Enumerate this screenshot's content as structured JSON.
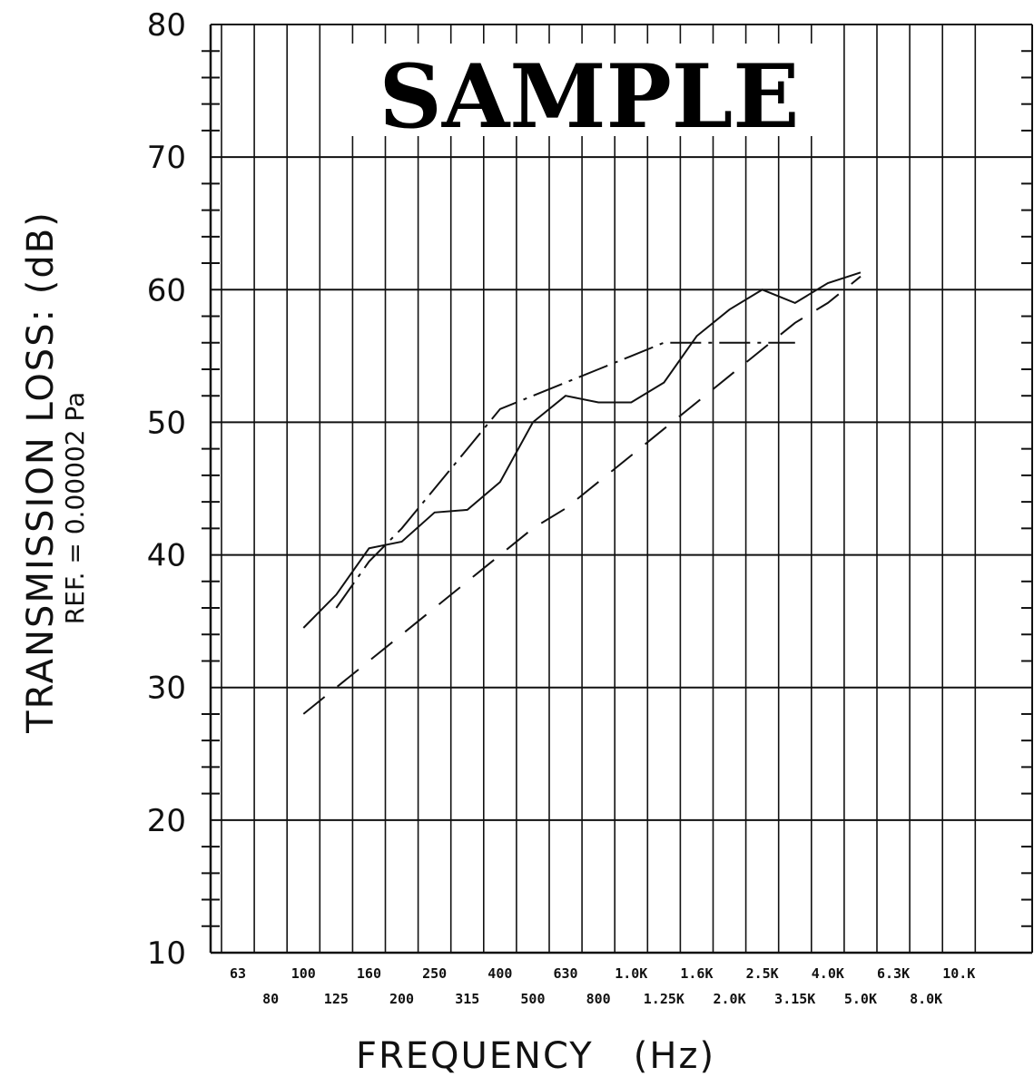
{
  "chart_data": {
    "type": "line",
    "title": "",
    "watermark": "SAMPLE",
    "xlabel": "FREQUENCY   (Hz)",
    "ylabel": "TRANSMISSION LOSS:   (dB)",
    "ylabel_sub": "REF. = 0.00002 Pa",
    "ylim": [
      10,
      80
    ],
    "y_ticks": [
      10,
      20,
      30,
      40,
      50,
      60,
      70,
      80
    ],
    "grid": true,
    "x_tick_labels_upper": [
      "63",
      "100",
      "160",
      "250",
      "400",
      "630",
      "1.0K",
      "1.6K",
      "2.5K",
      "4.0K",
      "6.3K",
      "10.K"
    ],
    "x_tick_labels_lower": [
      "80",
      "125",
      "200",
      "315",
      "500",
      "800",
      "1.25K",
      "2.0K",
      "3.15K",
      "5.0K",
      "8.0K"
    ],
    "categories": [
      "63",
      "80",
      "100",
      "125",
      "160",
      "200",
      "250",
      "315",
      "400",
      "500",
      "630",
      "800",
      "1.0K",
      "1.25K",
      "1.6K",
      "2.0K",
      "2.5K",
      "3.15K",
      "4.0K",
      "5.0K",
      "6.3K",
      "8.0K",
      "10.K"
    ],
    "series": [
      {
        "style": "solid",
        "values": [
          null,
          null,
          34.5,
          37.0,
          40.5,
          41.0,
          43.2,
          43.4,
          45.5,
          50.0,
          52.0,
          51.5,
          51.5,
          53.0,
          56.5,
          58.5,
          60.0,
          59.0,
          60.5,
          61.3,
          null,
          null,
          null
        ]
      },
      {
        "style": "dash-dot",
        "values": [
          null,
          null,
          null,
          36.0,
          39.5,
          42.0,
          45.0,
          48.0,
          51.0,
          52.0,
          53.0,
          54.0,
          55.0,
          56.0,
          56.0,
          56.0,
          56.0,
          56.0,
          null,
          null,
          null,
          null,
          null
        ]
      },
      {
        "style": "long-dash",
        "values": [
          null,
          null,
          28.0,
          30.0,
          32.0,
          34.0,
          36.0,
          38.0,
          40.0,
          42.0,
          43.5,
          45.5,
          47.5,
          49.5,
          51.5,
          53.5,
          55.5,
          57.5,
          59.0,
          61.0,
          null,
          null,
          null
        ]
      }
    ]
  }
}
